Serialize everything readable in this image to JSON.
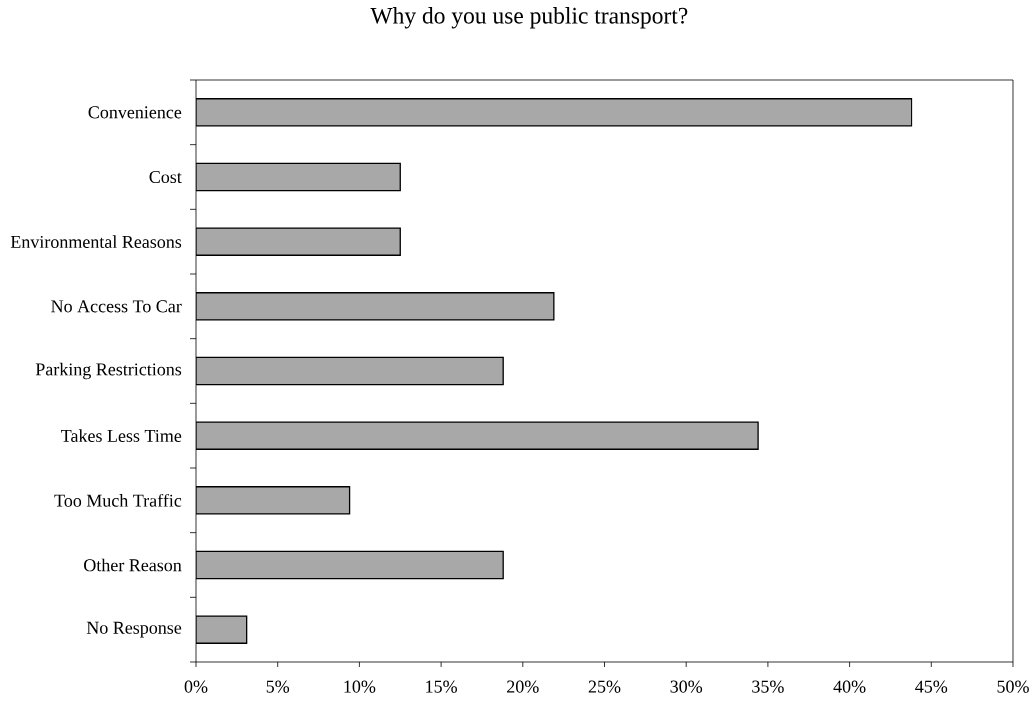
{
  "chart_data": {
    "type": "bar",
    "orientation": "horizontal",
    "title": "Why do you use public transport?",
    "categories": [
      "Convenience",
      "Cost",
      "Environmental Reasons",
      "No Access To Car",
      "Parking Restrictions",
      "Takes Less Time",
      "Too Much Traffic",
      "Other Reason",
      "No Response"
    ],
    "values": [
      43.8,
      12.5,
      12.5,
      21.9,
      18.8,
      34.4,
      9.4,
      18.8,
      3.1
    ],
    "color": "#a8a8a8",
    "xlim": [
      0,
      50
    ],
    "xticks": [
      {
        "value": 0,
        "label": "0%"
      },
      {
        "value": 5,
        "label": "5%"
      },
      {
        "value": 10,
        "label": "10%"
      },
      {
        "value": 15,
        "label": "15%"
      },
      {
        "value": 20,
        "label": "20%"
      },
      {
        "value": 25,
        "label": "25%"
      },
      {
        "value": 30,
        "label": "30%"
      },
      {
        "value": 35,
        "label": "35%"
      },
      {
        "value": 40,
        "label": "40%"
      },
      {
        "value": 45,
        "label": "45%"
      },
      {
        "value": 50,
        "label": "50%"
      }
    ]
  }
}
